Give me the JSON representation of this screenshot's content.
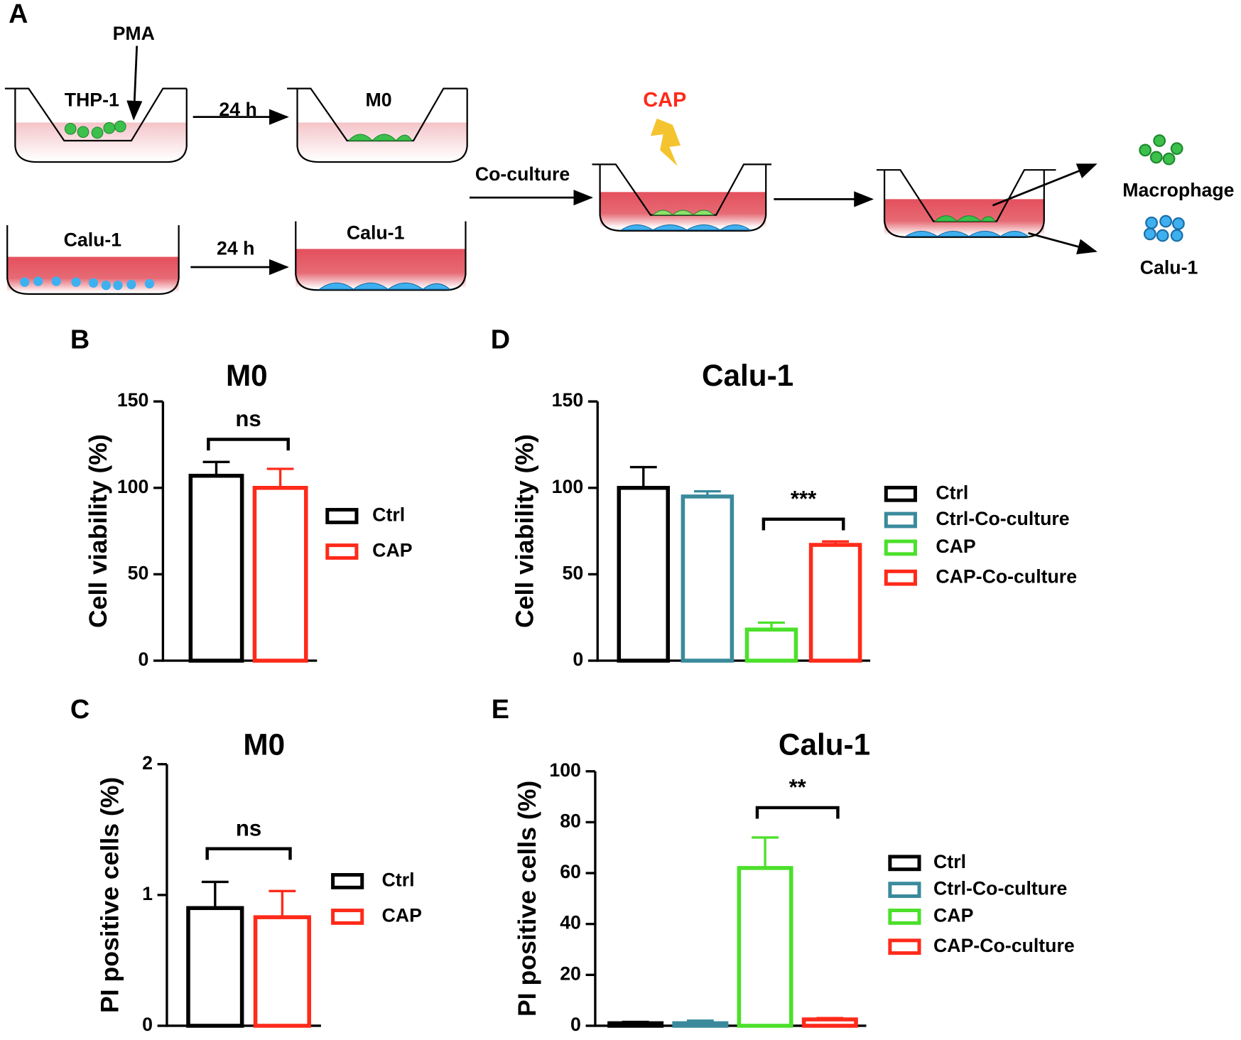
{
  "panel_a": {
    "label": "A",
    "pma": "PMA",
    "thp1": "THP-1",
    "time1": "24 h",
    "m0": "M0",
    "calu1_left": "Calu-1",
    "time2": "24 h",
    "calu1_right": "Calu-1",
    "cap": "CAP",
    "coculture": "Co-culture",
    "macrophage": "Macrophage",
    "calu1_out": "Calu-1"
  },
  "chart_data": [
    {
      "type": "bar",
      "panel": "B",
      "title": "M0",
      "y_label": "Cell viability (%)",
      "ylim": [
        0,
        150
      ],
      "yticks": [
        0,
        50,
        100,
        150
      ],
      "categories": [
        "Ctrl",
        "CAP"
      ],
      "values": [
        107,
        100
      ],
      "errors": [
        8,
        11
      ],
      "colors": [
        "#000000",
        "#ff2a1a"
      ],
      "annotation": "ns"
    },
    {
      "type": "bar",
      "panel": "D",
      "title": "Calu-1",
      "y_label": "Cell viability (%)",
      "ylim": [
        0,
        150
      ],
      "yticks": [
        0,
        50,
        100,
        150
      ],
      "categories": [
        "Ctrl",
        "Ctrl-Co-culture",
        "CAP",
        "CAP-Co-culture"
      ],
      "values": [
        100,
        95,
        18,
        67
      ],
      "errors": [
        12,
        3,
        4,
        2
      ],
      "colors": [
        "#000000",
        "#3a8a9c",
        "#4be02a",
        "#ff2a1a"
      ],
      "annotation": "***"
    },
    {
      "type": "bar",
      "panel": "C",
      "title": "M0",
      "y_label": "PI positive cells (%)",
      "ylim": [
        0,
        2
      ],
      "yticks": [
        0,
        1,
        2
      ],
      "categories": [
        "Ctrl",
        "CAP"
      ],
      "values": [
        0.9,
        0.83
      ],
      "errors": [
        0.2,
        0.2
      ],
      "colors": [
        "#000000",
        "#ff2a1a"
      ],
      "annotation": "ns"
    },
    {
      "type": "bar",
      "panel": "E",
      "title": "Calu-1",
      "y_label": "PI positive cells (%)",
      "ylim": [
        0,
        100
      ],
      "yticks": [
        0,
        20,
        40,
        60,
        80,
        100
      ],
      "categories": [
        "Ctrl",
        "Ctrl-Co-culture",
        "CAP",
        "CAP-Co-culture"
      ],
      "values": [
        1,
        1,
        62,
        2.5
      ],
      "errors": [
        0.5,
        1,
        12,
        0.5
      ],
      "colors": [
        "#000000",
        "#3a8a9c",
        "#4be02a",
        "#ff2a1a"
      ],
      "annotation": "**"
    }
  ]
}
